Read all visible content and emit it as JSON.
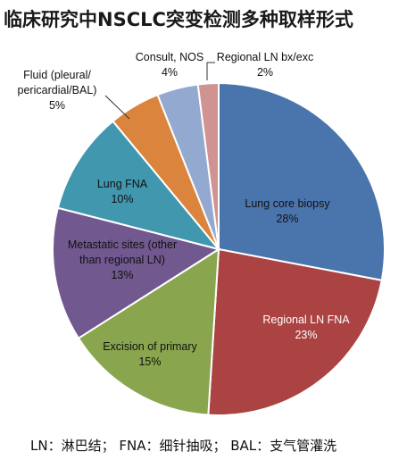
{
  "title": "临床研究中NSCLC突变检测多种取样形式",
  "footnote": "LN：淋巴结；  FNA：细针抽吸；  BAL：支气管灌洗",
  "chart_data": {
    "type": "pie",
    "title": "临床研究中NSCLC突变检测多种取样形式",
    "slices": [
      {
        "label": [
          "Lung core biopsy"
        ],
        "value_text": "28%",
        "value": 28,
        "color": "#4a74ac",
        "text_color": "#111111"
      },
      {
        "label": [
          "Regional LN FNA"
        ],
        "value_text": "23%",
        "value": 23,
        "color": "#aa4341",
        "text_color": "#ffffff"
      },
      {
        "label": [
          "Excision of primary"
        ],
        "value_text": "15%",
        "value": 15,
        "color": "#89a54e",
        "text_color": "#111111"
      },
      {
        "label": [
          "Metastatic sites (other",
          "than regional LN)"
        ],
        "value_text": "13%",
        "value": 13,
        "color": "#71588f",
        "text_color": "#111111"
      },
      {
        "label": [
          "Lung FNA"
        ],
        "value_text": "10%",
        "value": 10,
        "color": "#4197ae",
        "text_color": "#111111"
      },
      {
        "label": [
          "Fluid (pleural/",
          "pericardial/BAL)"
        ],
        "value_text": "5%",
        "value": 5,
        "color": "#db843d",
        "text_color": "#111111"
      },
      {
        "label": [
          "Consult, NOS"
        ],
        "value_text": "4%",
        "value": 4,
        "color": "#93a9cf",
        "text_color": "#111111"
      },
      {
        "label": [
          "Regional LN bx/exc"
        ],
        "value_text": "2%",
        "value": 2,
        "color": "#d19392",
        "text_color": "#111111"
      }
    ],
    "start_angle_deg": 0,
    "direction": "clockwise",
    "legend": "none"
  }
}
